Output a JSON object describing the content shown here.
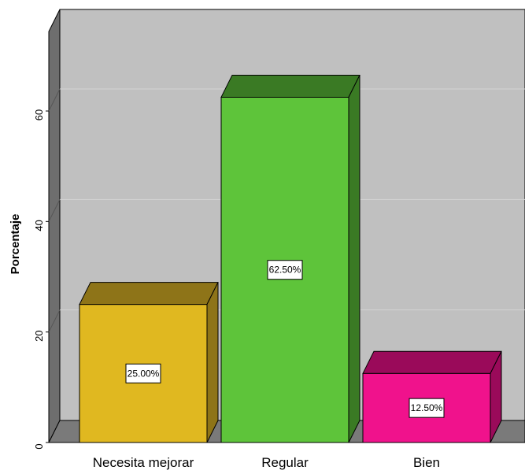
{
  "chart_data": {
    "type": "bar",
    "style": "3d",
    "categories": [
      "Necesita mejorar",
      "Regular",
      "Bien"
    ],
    "values": [
      25.0,
      62.5,
      12.5
    ],
    "data_labels": [
      "25.00%",
      "62.50%",
      "12.50%"
    ],
    "ylabel": "Porcentaje",
    "xlabel": "",
    "ylim": [
      0,
      75
    ],
    "yticks": [
      0,
      20,
      40,
      60
    ],
    "ytick_labels": [
      "0",
      "20",
      "40",
      "60"
    ],
    "grid": true,
    "legend": "none",
    "colors": {
      "bars": [
        "#E0B820",
        "#5EC43A",
        "#F0128C"
      ],
      "bar_tops": [
        "#8E7418",
        "#3A7A24",
        "#9A0A5A"
      ],
      "bar_sides": [
        "#8E7418",
        "#3A7A24",
        "#9A0A5A"
      ],
      "wall": "#C0C0C0",
      "wall_side": "#6E6E6E",
      "floor": "#7A7A7A",
      "gridline": "#D4D4D4"
    }
  }
}
